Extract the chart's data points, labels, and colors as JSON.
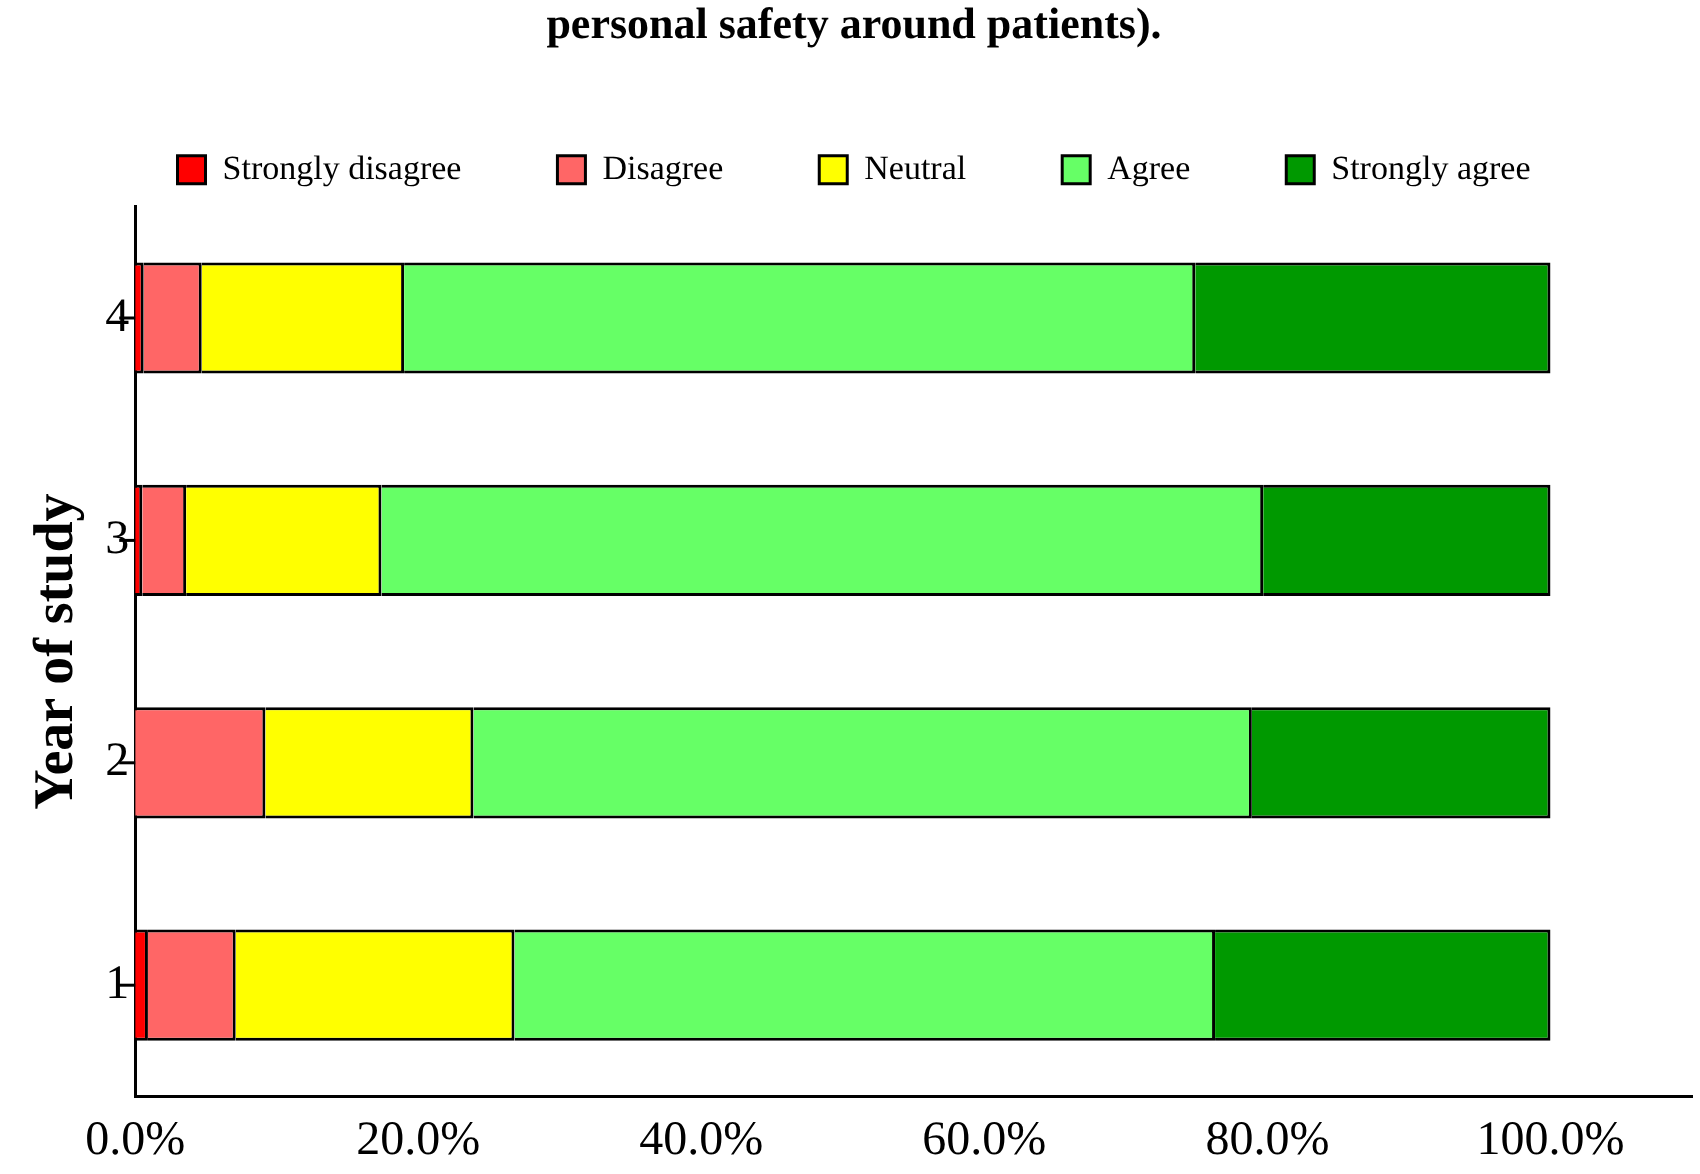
{
  "chart_data": {
    "type": "bar",
    "orientation": "horizontal",
    "stacked": true,
    "title": "personal safety around patients).",
    "ylabel": "Year of study",
    "categories": [
      "4",
      "3",
      "2",
      "1"
    ],
    "series": [
      {
        "name": "Strongly disagree",
        "color": "#ff0000",
        "values": [
          0.6,
          0.5,
          0,
          0.9
        ]
      },
      {
        "name": "Disagree",
        "color": "#ff6666",
        "values": [
          4.1,
          3.1,
          9.2,
          6.2
        ]
      },
      {
        "name": "Neutral",
        "color": "#ffff00",
        "values": [
          14.3,
          13.8,
          14.7,
          19.7
        ]
      },
      {
        "name": "Agree",
        "color": "#66ff66",
        "values": [
          55.9,
          62.3,
          55.0,
          49.5
        ]
      },
      {
        "name": "Strongly agree",
        "color": "#009900",
        "values": [
          25.1,
          20.3,
          21.1,
          23.7
        ]
      }
    ],
    "xlim": [
      0,
      110
    ],
    "xticks": [
      {
        "value": 0,
        "label": "0.0%"
      },
      {
        "value": 20,
        "label": "20.0%"
      },
      {
        "value": 40,
        "label": "40.0%"
      },
      {
        "value": 60,
        "label": "60.0%"
      },
      {
        "value": 80,
        "label": "80.0%"
      },
      {
        "value": 100,
        "label": "100.0%"
      }
    ],
    "grid": false,
    "legend": "top"
  }
}
